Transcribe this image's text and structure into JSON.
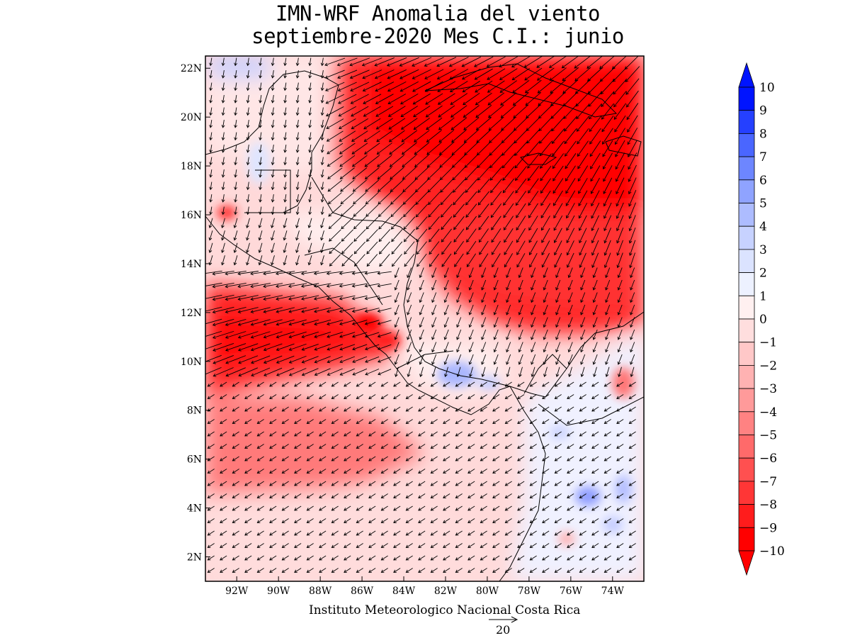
{
  "title": {
    "line1": "IMN-WRF Anomalia del viento",
    "line2": "septiembre-2020 Mes C.I.: junio"
  },
  "credit": "Instituto Meteorologico Nacional Costa Rica",
  "reference_vector": {
    "value": "20"
  },
  "map": {
    "region": "Central America / Caribbean",
    "lon_range": [
      -93.5,
      -72.5
    ],
    "lat_range": [
      1,
      22.5
    ],
    "lat_ticks": [
      "2N",
      "4N",
      "6N",
      "8N",
      "10N",
      "12N",
      "14N",
      "16N",
      "18N",
      "20N",
      "22N"
    ],
    "lat_tick_values": [
      2,
      4,
      6,
      8,
      10,
      12,
      14,
      16,
      18,
      20,
      22
    ],
    "lon_ticks": [
      "92W",
      "90W",
      "88W",
      "86W",
      "84W",
      "82W",
      "80W",
      "78W",
      "76W",
      "74W"
    ],
    "lon_tick_values": [
      -92,
      -90,
      -88,
      -86,
      -84,
      -82,
      -80,
      -78,
      -76,
      -74
    ]
  },
  "colorbar": {
    "labels": [
      "10",
      "9",
      "8",
      "7",
      "6",
      "5",
      "4",
      "3",
      "2",
      "1",
      "0",
      "−1",
      "−2",
      "−3",
      "−4",
      "−5",
      "−6",
      "−7",
      "−8",
      "−9",
      "−10"
    ],
    "colors": [
      "#0014ff",
      "#2540ff",
      "#4a66ff",
      "#6d86ff",
      "#8fa3ff",
      "#adbcff",
      "#c7d2ff",
      "#dbe3ff",
      "#edf1ff",
      "#fff0f0",
      "#ffdede",
      "#ffc8c8",
      "#ffb2b2",
      "#ff9a9a",
      "#ff8282",
      "#ff6a6a",
      "#ff5050",
      "#ff3636",
      "#ff1c1c",
      "#ff0000"
    ],
    "max_color": "#0014ff",
    "min_color": "#ff0000"
  }
}
